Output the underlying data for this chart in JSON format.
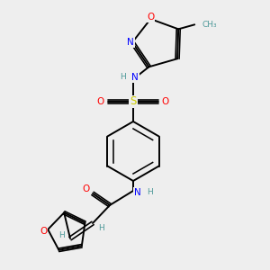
{
  "bg_color": "#eeeeee",
  "atom_colors": {
    "C": "#4d9999",
    "N": "#0000ff",
    "O": "#ff0000",
    "S": "#cccc00",
    "H": "#4d9999"
  },
  "bond_color": "#000000",
  "bond_lw": 1.4,
  "font_size": 7.5,
  "font_size_small": 6.5
}
